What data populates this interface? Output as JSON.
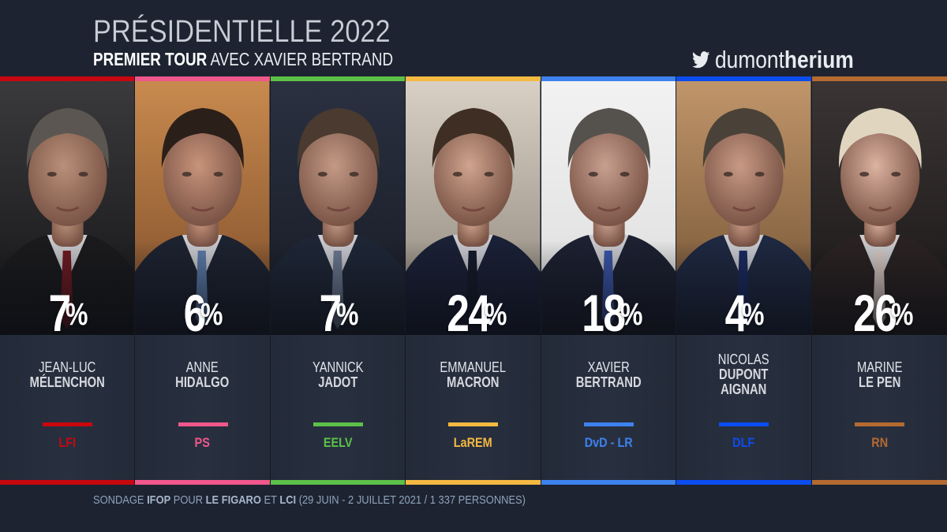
{
  "header": {
    "title": "PRÉSIDENTIELLE 2022",
    "subtitle_bold": "PREMIER TOUR",
    "subtitle_rest": " AVEC XAVIER BERTRAND"
  },
  "brand": {
    "icon": "twitter-bird-icon",
    "handle_light": "dumont",
    "handle_bold": "herium"
  },
  "candidates": [
    {
      "first": "JEAN-LUC",
      "last": "MÉLENCHON",
      "pct": "7",
      "party": "LFI",
      "color": "#c8070f",
      "bg1": "#3a3a3c",
      "bg2": "#141416",
      "skin": "#b99079",
      "hair": "#5b5652",
      "suit": "#1a1a1c",
      "tie": "#6e1a20"
    },
    {
      "first": "ANNE",
      "last": "HIDALGO",
      "pct": "6",
      "party": "PS",
      "color": "#f0578b",
      "bg1": "#c88a4e",
      "bg2": "#7a4a28",
      "skin": "#c8937a",
      "hair": "#2b1f1a",
      "suit": "#1d2230",
      "tie": "#5b7aa8"
    },
    {
      "first": "YANNICK",
      "last": "JADOT",
      "pct": "7",
      "party": "EELV",
      "color": "#5cc148",
      "bg1": "#2a3040",
      "bg2": "#171b24",
      "skin": "#c49a86",
      "hair": "#4a3a30",
      "suit": "#1e2636",
      "tie": "#6b7890"
    },
    {
      "first": "EMMANUEL",
      "last": "MACRON",
      "pct": "24",
      "party": "LaREM",
      "color": "#f5b942",
      "bg1": "#d8d0c4",
      "bg2": "#8a8276",
      "skin": "#d0a48e",
      "hair": "#3e2e24",
      "suit": "#1a2036",
      "tie": "#141a2a"
    },
    {
      "first": "XAVIER",
      "last": "BERTRAND",
      "pct": "18",
      "party": "DvD - LR",
      "color": "#3d82ee",
      "bg1": "#f2f2f2",
      "bg2": "#dcdcdc",
      "skin": "#c8a090",
      "hair": "#55524e",
      "suit": "#1c2030",
      "tie": "#3a55a8"
    },
    {
      "first": "NICOLAS",
      "last": "DUPONT AIGNAN",
      "pct": "4",
      "party": "DLF",
      "color": "#0b4df0",
      "bg1": "#c0956a",
      "bg2": "#6e4e30",
      "skin": "#c89a84",
      "hair": "#4a4238",
      "suit": "#1e2840",
      "tie": "#1a2a60"
    },
    {
      "first": "MARINE",
      "last": "LE PEN",
      "pct": "26",
      "party": "RN",
      "color": "#b46a30",
      "bg1": "#3a3434",
      "bg2": "#1a1616",
      "skin": "#dcb2a0",
      "hair": "#e0d6c0",
      "suit": "#2a2222",
      "tie": "#d8c8c0"
    }
  ],
  "footer": {
    "p1": "SONDAGE ",
    "b1": "IFOP",
    "p2": " POUR ",
    "b2": "LE FIGARO",
    "p3": " ET ",
    "b3": "LCI",
    "p4": " (29 JUIN - 2 JUILLET 2021 / 1 337 PERSONNES)"
  },
  "chart_data": {
    "type": "bar",
    "title": "PRÉSIDENTIELLE 2022 — PREMIER TOUR AVEC XAVIER BERTRAND",
    "categories": [
      "Jean-Luc Mélenchon",
      "Anne Hidalgo",
      "Yannick Jadot",
      "Emmanuel Macron",
      "Xavier Bertrand",
      "Nicolas Dupont Aignan",
      "Marine Le Pen"
    ],
    "parties": [
      "LFI",
      "PS",
      "EELV",
      "LaREM",
      "DvD - LR",
      "DLF",
      "RN"
    ],
    "values": [
      7,
      6,
      7,
      24,
      18,
      4,
      26
    ],
    "unit": "%",
    "colors": [
      "#c8070f",
      "#f0578b",
      "#5cc148",
      "#f5b942",
      "#3d82ee",
      "#0b4df0",
      "#b46a30"
    ],
    "source": "Sondage IFOP pour Le Figaro et LCI (29 juin - 2 juillet 2021 / 1 337 personnes)"
  }
}
